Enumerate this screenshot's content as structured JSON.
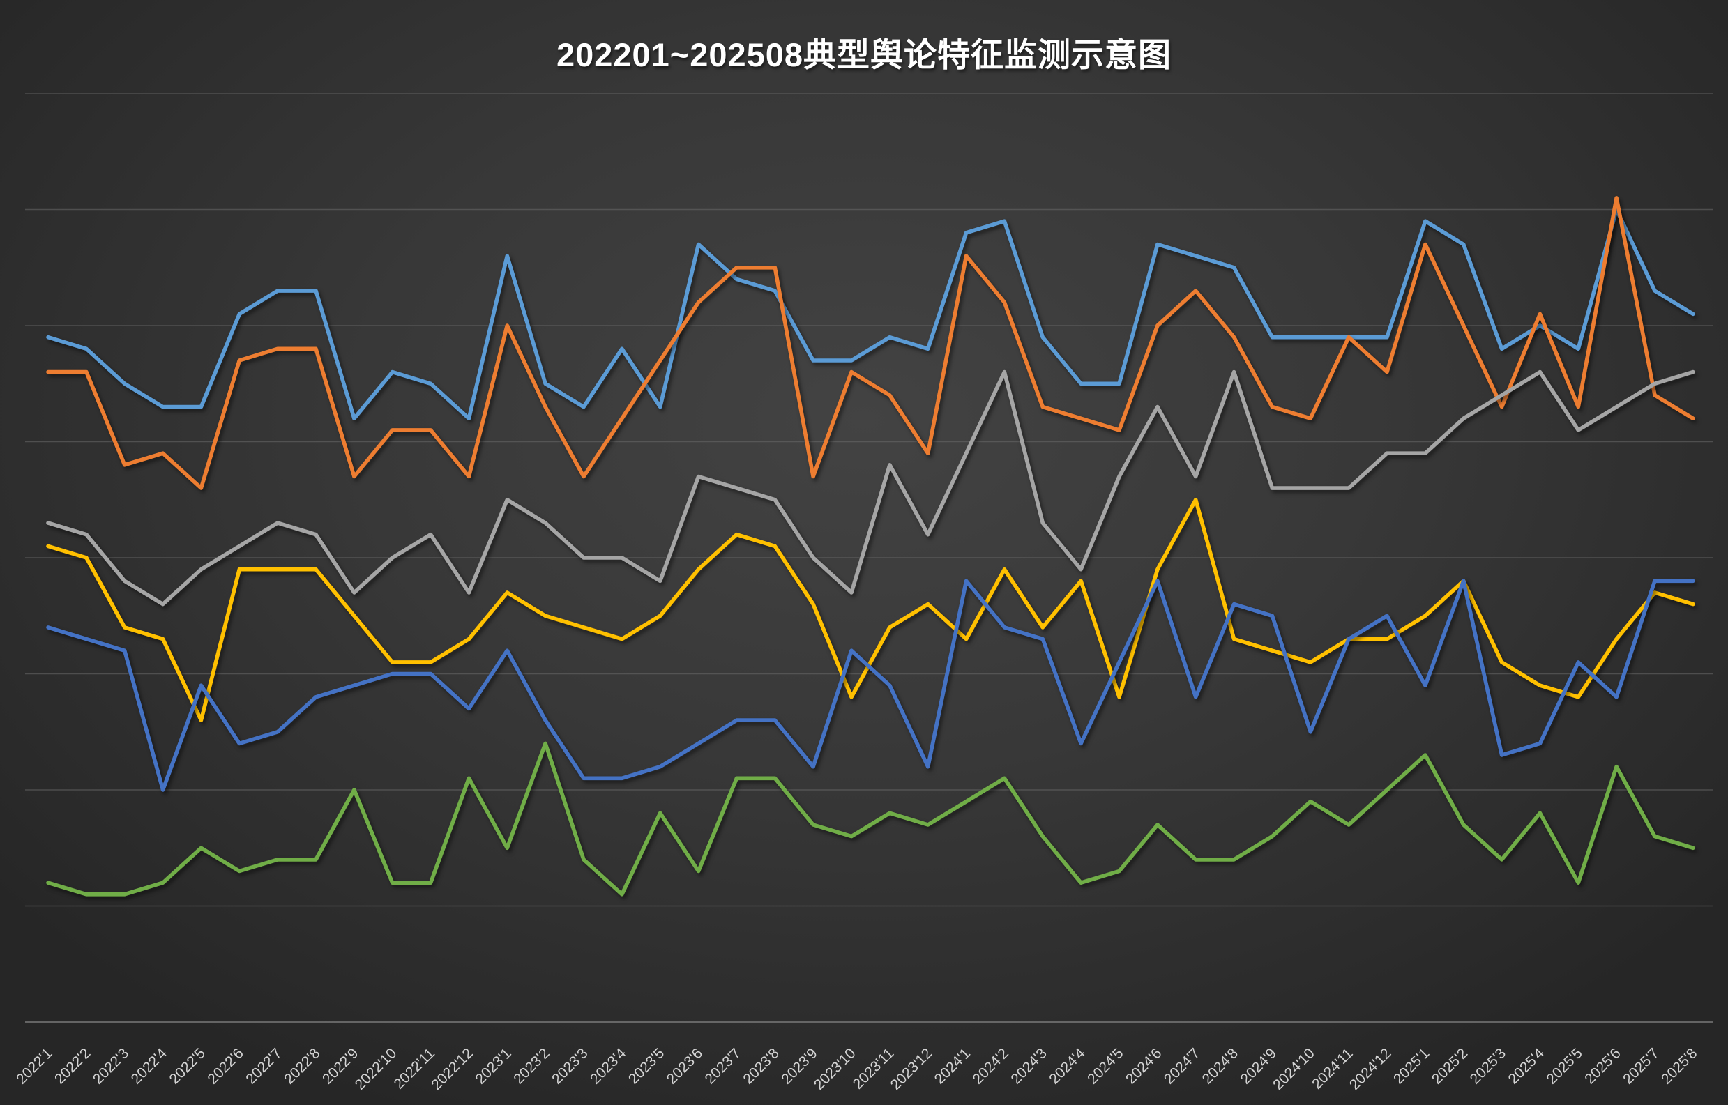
{
  "chart_data": {
    "type": "line",
    "title": "202201~202508典型舆论特征监测示意图",
    "xlabel": "",
    "ylabel": "",
    "legend": "none",
    "grid": "horizontal",
    "y_axis": {
      "labels_visible": false,
      "ylim": [
        0,
        88
      ],
      "gridline_values": [
        0,
        10,
        20,
        30,
        40,
        50,
        60,
        70,
        80
      ]
    },
    "categories": [
      "2022'1",
      "2022'2",
      "2022'3",
      "2022'4",
      "2022'5",
      "2022'6",
      "2022'7",
      "2022'8",
      "2022'9",
      "2022'10",
      "2022'11",
      "2022'12",
      "2023'1",
      "2023'2",
      "2023'3",
      "2023'4",
      "2023'5",
      "2023'6",
      "2023'7",
      "2023'8",
      "2023'9",
      "2023'10",
      "2023'11",
      "2023'12",
      "2024'1",
      "2024'2",
      "2024'3",
      "2024'4",
      "2024'5",
      "2024'6",
      "2024'7",
      "2024'8",
      "2024'9",
      "2024'10",
      "2024'11",
      "2024'12",
      "2025'1",
      "2025'2",
      "2025'3",
      "2025'4",
      "2025'5",
      "2025'6",
      "2025'7",
      "2025'8"
    ],
    "series": [
      {
        "name": "light-blue",
        "color": "#5B9BD5",
        "values": [
          59,
          58,
          55,
          53,
          53,
          61,
          63,
          63,
          52,
          56,
          55,
          52,
          66,
          55,
          53,
          58,
          53,
          67,
          64,
          63,
          57,
          57,
          59,
          58,
          68,
          69,
          59,
          55,
          55,
          67,
          66,
          65,
          59,
          59,
          59,
          59,
          69,
          67,
          58,
          60,
          58,
          70,
          63,
          61
        ]
      },
      {
        "name": "orange",
        "color": "#ED7D31",
        "values": [
          56,
          56,
          48,
          49,
          46,
          57,
          58,
          58,
          47,
          51,
          51,
          47,
          60,
          53,
          47,
          52,
          57,
          62,
          65,
          65,
          47,
          56,
          54,
          49,
          66,
          62,
          53,
          52,
          51,
          60,
          63,
          59,
          53,
          52,
          59,
          56,
          67,
          60,
          53,
          61,
          53,
          71,
          54,
          52
        ]
      },
      {
        "name": "gray",
        "color": "#A5A5A5",
        "values": [
          43,
          42,
          38,
          36,
          39,
          41,
          43,
          42,
          37,
          40,
          42,
          37,
          45,
          43,
          40,
          40,
          38,
          47,
          46,
          45,
          40,
          37,
          48,
          42,
          49,
          56,
          43,
          39,
          47,
          53,
          47,
          56,
          46,
          46,
          46,
          49,
          49,
          52,
          54,
          56,
          51,
          53,
          55,
          56
        ]
      },
      {
        "name": "gold",
        "color": "#FFC000",
        "values": [
          41,
          40,
          34,
          33,
          26,
          39,
          39,
          39,
          35,
          31,
          31,
          33,
          37,
          35,
          34,
          33,
          35,
          39,
          42,
          41,
          36,
          28,
          34,
          36,
          33,
          39,
          34,
          38,
          28,
          39,
          45,
          33,
          32,
          31,
          33,
          33,
          35,
          38,
          31,
          29,
          28,
          33,
          37,
          36
        ]
      },
      {
        "name": "blue",
        "color": "#4472C4",
        "values": [
          34,
          33,
          32,
          20,
          29,
          24,
          25,
          28,
          29,
          30,
          30,
          27,
          32,
          26,
          21,
          21,
          22,
          24,
          26,
          26,
          22,
          32,
          29,
          22,
          38,
          34,
          33,
          24,
          31,
          38,
          28,
          36,
          35,
          25,
          33,
          35,
          29,
          38,
          23,
          24,
          31,
          28,
          38,
          38
        ]
      },
      {
        "name": "green",
        "color": "#70AD47",
        "values": [
          12,
          11,
          11,
          12,
          15,
          13,
          14,
          14,
          20,
          12,
          12,
          21,
          15,
          24,
          14,
          11,
          18,
          13,
          21,
          21,
          17,
          16,
          18,
          17,
          19,
          21,
          16,
          12,
          13,
          17,
          14,
          14,
          16,
          19,
          17,
          20,
          23,
          17,
          14,
          18,
          12,
          22,
          16,
          15
        ]
      }
    ]
  },
  "layout_colors": {
    "background_center": "#434343",
    "background_edge": "#262626",
    "gridline": "#6a6a6a",
    "axis_label": "#d4d4d4",
    "title": "#ffffff"
  }
}
